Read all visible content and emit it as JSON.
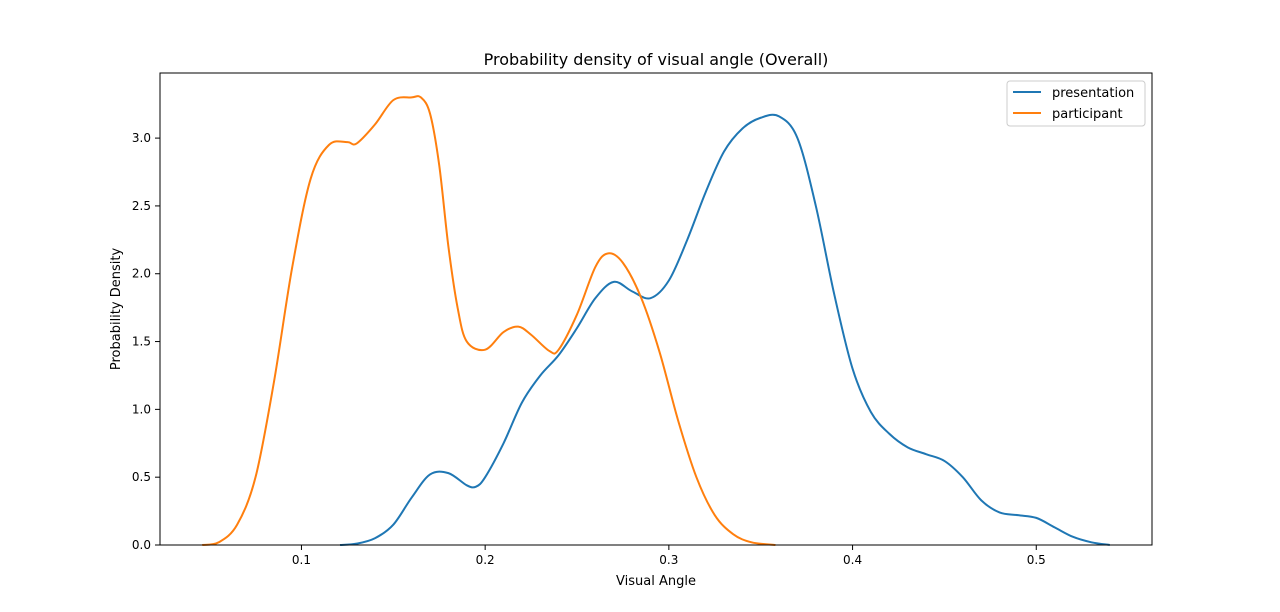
{
  "chart_data": {
    "type": "line",
    "title": "Probability density of visual angle (Overall)",
    "xlabel": "Visual Angle",
    "ylabel": "Probability Density",
    "xlim": [
      0.023,
      0.563
    ],
    "ylim": [
      0,
      3.48
    ],
    "xticks": [
      0.1,
      0.2,
      0.3,
      0.4,
      0.5
    ],
    "xtick_labels": [
      "0.1",
      "0.2",
      "0.3",
      "0.4",
      "0.5"
    ],
    "yticks": [
      0.0,
      0.5,
      1.0,
      1.5,
      2.0,
      2.5,
      3.0
    ],
    "ytick_labels": [
      "0.0",
      "0.5",
      "1.0",
      "1.5",
      "2.0",
      "2.5",
      "3.0"
    ],
    "grid": false,
    "legend_position": "top-right",
    "series": [
      {
        "name": "presentation",
        "color": "#1f77b4",
        "points": [
          [
            0.121,
            0.0
          ],
          [
            0.13,
            0.01
          ],
          [
            0.14,
            0.05
          ],
          [
            0.15,
            0.15
          ],
          [
            0.16,
            0.35
          ],
          [
            0.17,
            0.52
          ],
          [
            0.18,
            0.53
          ],
          [
            0.19,
            0.44
          ],
          [
            0.195,
            0.43
          ],
          [
            0.2,
            0.5
          ],
          [
            0.21,
            0.75
          ],
          [
            0.22,
            1.05
          ],
          [
            0.23,
            1.25
          ],
          [
            0.24,
            1.4
          ],
          [
            0.25,
            1.6
          ],
          [
            0.26,
            1.82
          ],
          [
            0.27,
            1.94
          ],
          [
            0.28,
            1.87
          ],
          [
            0.29,
            1.82
          ],
          [
            0.3,
            1.95
          ],
          [
            0.31,
            2.25
          ],
          [
            0.32,
            2.6
          ],
          [
            0.33,
            2.9
          ],
          [
            0.34,
            3.07
          ],
          [
            0.35,
            3.15
          ],
          [
            0.36,
            3.16
          ],
          [
            0.37,
            3.0
          ],
          [
            0.38,
            2.5
          ],
          [
            0.39,
            1.85
          ],
          [
            0.4,
            1.3
          ],
          [
            0.41,
            0.98
          ],
          [
            0.42,
            0.82
          ],
          [
            0.43,
            0.72
          ],
          [
            0.44,
            0.67
          ],
          [
            0.45,
            0.62
          ],
          [
            0.46,
            0.5
          ],
          [
            0.47,
            0.33
          ],
          [
            0.48,
            0.24
          ],
          [
            0.49,
            0.22
          ],
          [
            0.5,
            0.2
          ],
          [
            0.51,
            0.13
          ],
          [
            0.52,
            0.06
          ],
          [
            0.53,
            0.02
          ],
          [
            0.54,
            0.0
          ]
        ]
      },
      {
        "name": "participant",
        "color": "#ff7f0e",
        "points": [
          [
            0.046,
            0.0
          ],
          [
            0.055,
            0.02
          ],
          [
            0.065,
            0.15
          ],
          [
            0.075,
            0.5
          ],
          [
            0.085,
            1.2
          ],
          [
            0.095,
            2.05
          ],
          [
            0.105,
            2.7
          ],
          [
            0.115,
            2.95
          ],
          [
            0.125,
            2.97
          ],
          [
            0.13,
            2.96
          ],
          [
            0.14,
            3.1
          ],
          [
            0.15,
            3.28
          ],
          [
            0.16,
            3.3
          ],
          [
            0.165,
            3.3
          ],
          [
            0.17,
            3.18
          ],
          [
            0.175,
            2.8
          ],
          [
            0.18,
            2.2
          ],
          [
            0.185,
            1.75
          ],
          [
            0.19,
            1.5
          ],
          [
            0.2,
            1.44
          ],
          [
            0.21,
            1.57
          ],
          [
            0.218,
            1.61
          ],
          [
            0.225,
            1.55
          ],
          [
            0.235,
            1.43
          ],
          [
            0.24,
            1.44
          ],
          [
            0.25,
            1.7
          ],
          [
            0.26,
            2.05
          ],
          [
            0.267,
            2.15
          ],
          [
            0.275,
            2.08
          ],
          [
            0.285,
            1.82
          ],
          [
            0.295,
            1.42
          ],
          [
            0.305,
            0.92
          ],
          [
            0.315,
            0.5
          ],
          [
            0.325,
            0.22
          ],
          [
            0.335,
            0.08
          ],
          [
            0.345,
            0.02
          ],
          [
            0.358,
            0.0
          ]
        ]
      }
    ]
  }
}
